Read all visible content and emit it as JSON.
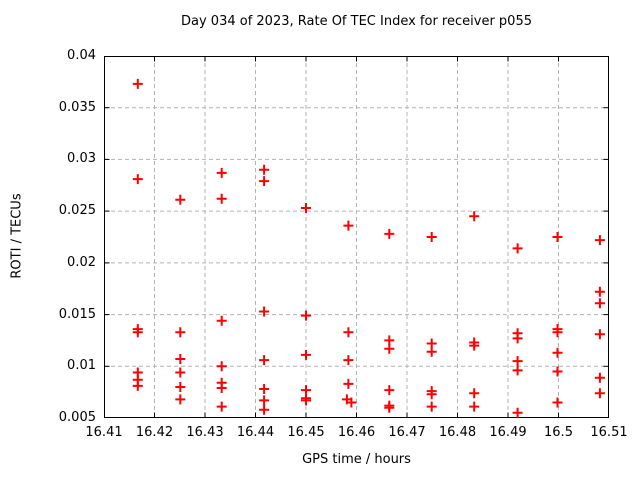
{
  "chart": {
    "title": "Day 034 of 2023, Rate Of TEC Index for receiver p055",
    "xlabel": "GPS time / hours",
    "ylabel": "ROTI / TECUs"
  },
  "chart_data": {
    "type": "scatter",
    "title": "Day 034 of 2023, Rate Of TEC Index for receiver p055",
    "xlabel": "GPS time / hours",
    "ylabel": "ROTI / TECUs",
    "xlim": [
      16.41,
      16.51
    ],
    "ylim": [
      0.005,
      0.04
    ],
    "xtick_values": [
      16.41,
      16.42,
      16.43,
      16.44,
      16.45,
      16.46,
      16.47,
      16.48,
      16.49,
      16.5,
      16.51
    ],
    "xtick_labels": [
      "16.41",
      "16.42",
      "16.43",
      "16.44",
      "16.45",
      "16.46",
      "16.47",
      "16.48",
      "16.49",
      "16.5",
      "16.51"
    ],
    "ytick_values": [
      0.005,
      0.01,
      0.015,
      0.02,
      0.025,
      0.03,
      0.035,
      0.04
    ],
    "ytick_labels": [
      "0.005",
      "0.01",
      "0.015",
      "0.02",
      "0.025",
      "0.03",
      "0.035",
      "0.04"
    ],
    "grid": true,
    "legend": "none",
    "marker": "plus",
    "marker_color": "#ff0000",
    "grid_color": "#b3b3b3",
    "frame_color": "#000000",
    "points": [
      [
        16.4167,
        0.0373
      ],
      [
        16.4167,
        0.0281
      ],
      [
        16.4167,
        0.0136
      ],
      [
        16.4167,
        0.0133
      ],
      [
        16.4167,
        0.0094
      ],
      [
        16.4167,
        0.0087
      ],
      [
        16.4167,
        0.0081
      ],
      [
        16.4251,
        0.0261
      ],
      [
        16.4251,
        0.0133
      ],
      [
        16.4251,
        0.0107
      ],
      [
        16.4251,
        0.0094
      ],
      [
        16.4251,
        0.008
      ],
      [
        16.4251,
        0.0068
      ],
      [
        16.4333,
        0.0287
      ],
      [
        16.4333,
        0.0262
      ],
      [
        16.4333,
        0.0144
      ],
      [
        16.4333,
        0.01
      ],
      [
        16.4333,
        0.0084
      ],
      [
        16.4333,
        0.0079
      ],
      [
        16.4333,
        0.0061
      ],
      [
        16.4417,
        0.029
      ],
      [
        16.4417,
        0.0279
      ],
      [
        16.4417,
        0.0153
      ],
      [
        16.4417,
        0.0106
      ],
      [
        16.4417,
        0.0078
      ],
      [
        16.4417,
        0.0067
      ],
      [
        16.4417,
        0.0058
      ],
      [
        16.45,
        0.0253
      ],
      [
        16.45,
        0.0149
      ],
      [
        16.45,
        0.0111
      ],
      [
        16.45,
        0.0077
      ],
      [
        16.45,
        0.0069
      ],
      [
        16.45,
        0.0067
      ],
      [
        16.4584,
        0.0236
      ],
      [
        16.4584,
        0.0133
      ],
      [
        16.4584,
        0.0106
      ],
      [
        16.4584,
        0.0083
      ],
      [
        16.4581,
        0.0068
      ],
      [
        16.459,
        0.0065
      ],
      [
        16.4665,
        0.0228
      ],
      [
        16.4665,
        0.0125
      ],
      [
        16.4665,
        0.0117
      ],
      [
        16.4665,
        0.0077
      ],
      [
        16.4665,
        0.0062
      ],
      [
        16.4665,
        0.006
      ],
      [
        16.4749,
        0.0225
      ],
      [
        16.4749,
        0.0122
      ],
      [
        16.4749,
        0.0114
      ],
      [
        16.4749,
        0.0076
      ],
      [
        16.4749,
        0.0073
      ],
      [
        16.4749,
        0.0061
      ],
      [
        16.4833,
        0.0245
      ],
      [
        16.4833,
        0.0123
      ],
      [
        16.4833,
        0.012
      ],
      [
        16.4833,
        0.0074
      ],
      [
        16.4833,
        0.0061
      ],
      [
        16.4919,
        0.0214
      ],
      [
        16.4919,
        0.0132
      ],
      [
        16.4919,
        0.0127
      ],
      [
        16.4919,
        0.0105
      ],
      [
        16.4919,
        0.0096
      ],
      [
        16.4919,
        0.0055
      ],
      [
        16.4998,
        0.0225
      ],
      [
        16.4998,
        0.0136
      ],
      [
        16.4998,
        0.0133
      ],
      [
        16.4998,
        0.0113
      ],
      [
        16.4998,
        0.0095
      ],
      [
        16.4998,
        0.0065
      ],
      [
        16.5082,
        0.0222
      ],
      [
        16.5082,
        0.0172
      ],
      [
        16.5082,
        0.0161
      ],
      [
        16.5082,
        0.0131
      ],
      [
        16.5082,
        0.0089
      ],
      [
        16.5082,
        0.0074
      ]
    ]
  }
}
